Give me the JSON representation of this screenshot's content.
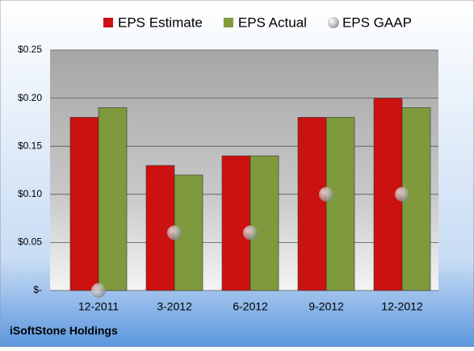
{
  "chart_data": {
    "type": "bar",
    "categories": [
      "12-2011",
      "3-2012",
      "6-2012",
      "9-2012",
      "12-2012"
    ],
    "series": [
      {
        "name": "EPS Estimate",
        "color": "#cc1111",
        "type": "bar",
        "values": [
          0.18,
          0.13,
          0.14,
          0.18,
          0.2
        ]
      },
      {
        "name": "EPS Actual",
        "color": "#7f9a3c",
        "type": "bar",
        "values": [
          0.19,
          0.12,
          0.14,
          0.18,
          0.19
        ]
      },
      {
        "name": "EPS GAAP",
        "color": "#a0a0a0",
        "type": "scatter",
        "values": [
          0,
          0.06,
          0.06,
          0.1,
          0.1
        ]
      }
    ],
    "ylim": [
      0,
      0.25
    ],
    "yticks": [
      {
        "value": 0,
        "label": "$-"
      },
      {
        "value": 0.05,
        "label": "$0.05"
      },
      {
        "value": 0.1,
        "label": "$0.10"
      },
      {
        "value": 0.15,
        "label": "$0.15"
      },
      {
        "value": 0.2,
        "label": "$0.20"
      },
      {
        "value": 0.25,
        "label": "$0.25"
      }
    ],
    "grid": true,
    "legend": "top",
    "footer": "iSoftStone Holdings"
  }
}
